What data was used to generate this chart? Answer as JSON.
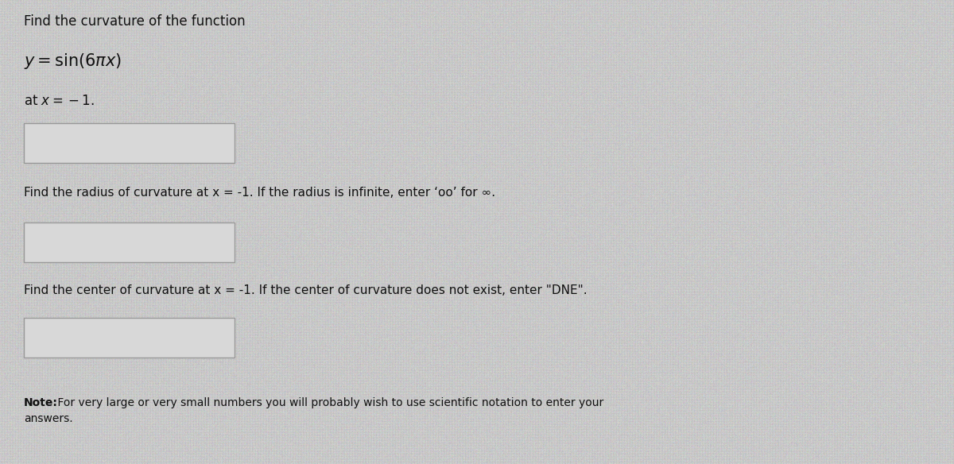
{
  "background_color_base": "#b8b8b8",
  "background_color_light": "#d4d4d4",
  "text_color": "#111111",
  "title_line1": "Find the curvature of the function",
  "at_line": "at x = -1.",
  "radius_label": "Find the radius of curvature at x = -1. If the radius is infinite, enter ‘oo’ for ∞.",
  "center_label": "Find the center of curvature at x = -1. If the center of curvature does not exist, enter \"DNE\".",
  "note_bold": "Note:",
  "note_rest": " For very large or very small numbers you will probably wish to use scientific notation to enter your",
  "note_line2": "answers.",
  "box_facecolor": "#d8d8d8",
  "box_edge_color": "#999999",
  "font_size_title": 12,
  "font_size_function": 14,
  "font_size_label": 11,
  "font_size_note": 10,
  "figwidth": 12.0,
  "figheight": 5.84,
  "dpi": 100
}
